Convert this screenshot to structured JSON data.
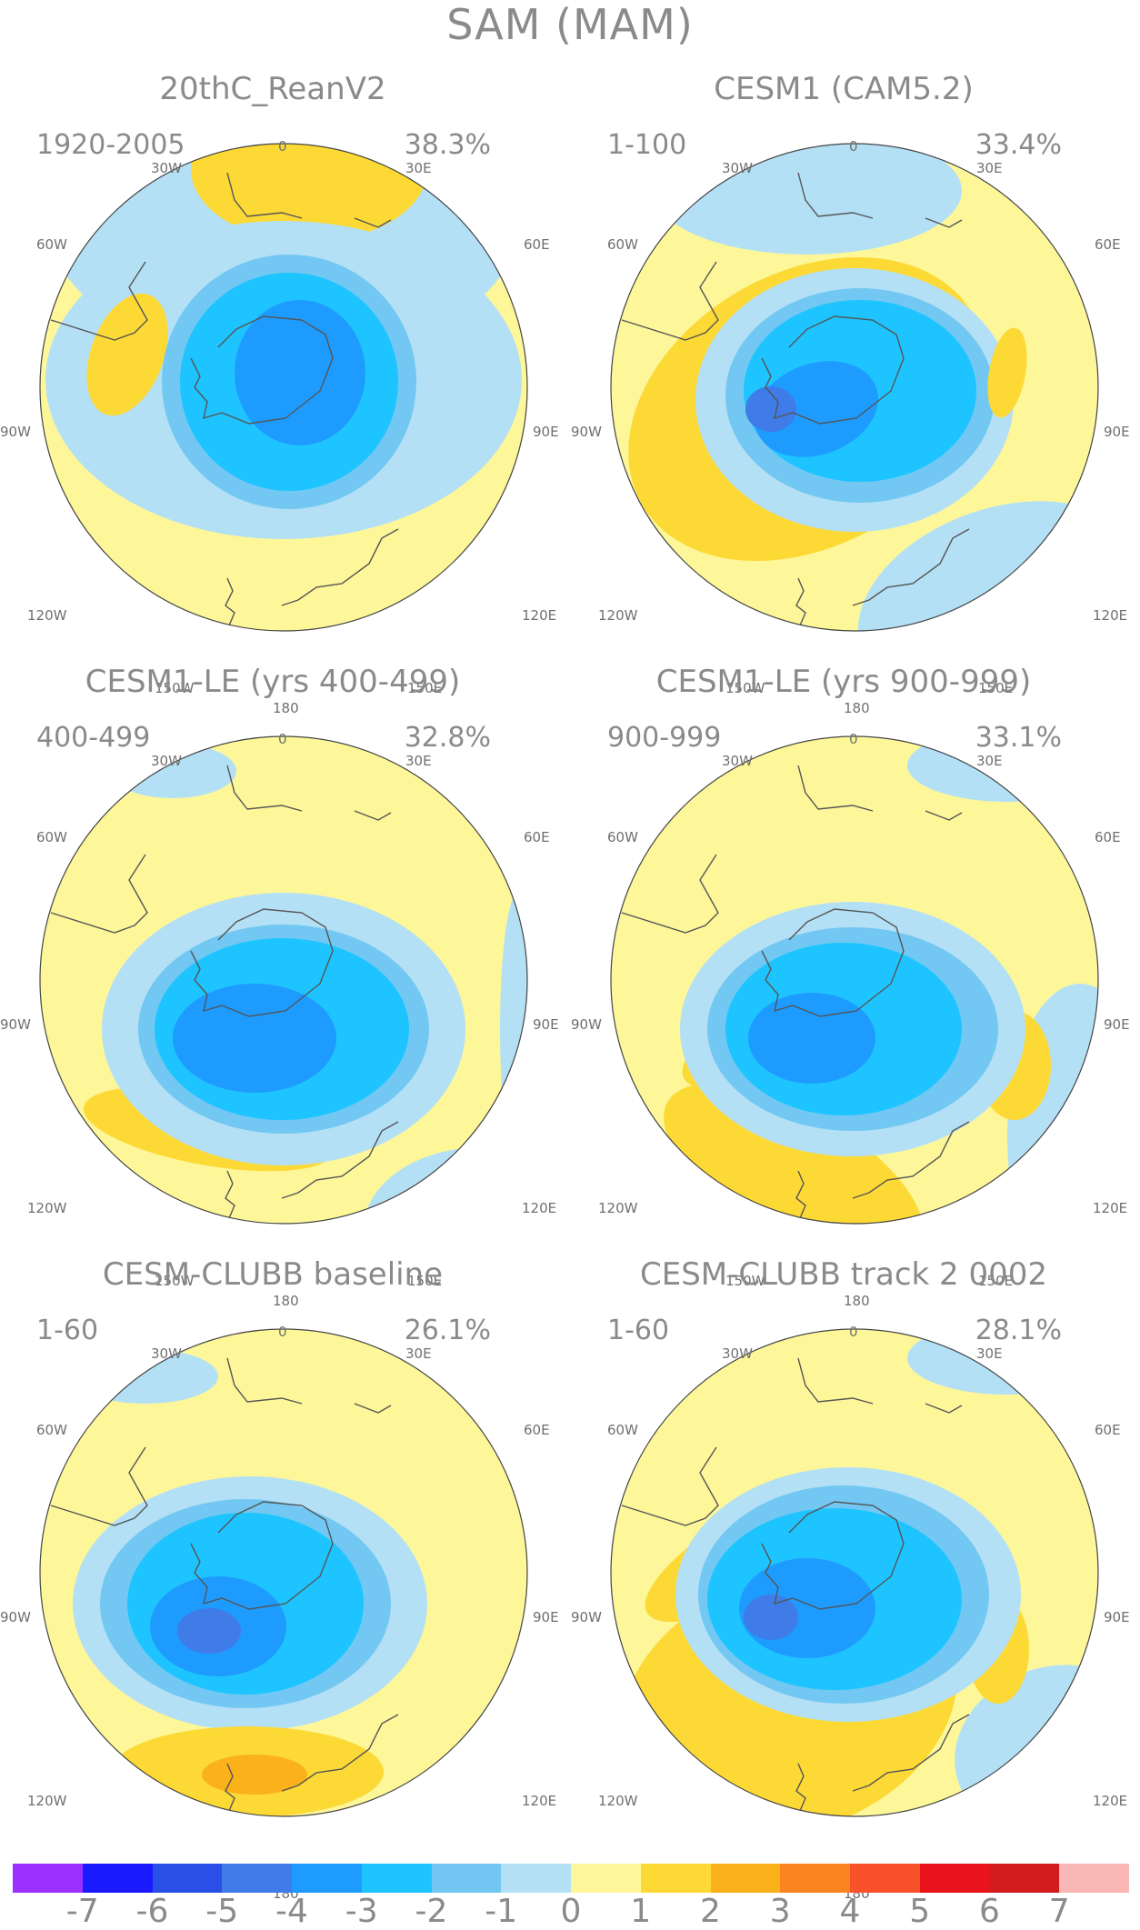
{
  "title": "SAM (MAM)",
  "longitude_labels": {
    "top": "0",
    "top_right": "30E",
    "right_upper": "60E",
    "right": "90E",
    "right_lower": "120E",
    "bottom_right": "150E",
    "bottom": "180",
    "bottom_left": "150W",
    "left_lower": "120W",
    "left": "90W",
    "left_upper": "60W",
    "top_left": "30W"
  },
  "panels": [
    {
      "title": "20thC_ReanV2",
      "period": "1920-2005",
      "variance": "38.3%"
    },
    {
      "title": "CESM1 (CAM5.2)",
      "period": "1-100",
      "variance": "33.4%"
    },
    {
      "title": "CESM1-LE (yrs 400-499)",
      "period": "400-499",
      "variance": "32.8%"
    },
    {
      "title": "CESM1-LE (yrs 900-999)",
      "period": "900-999",
      "variance": "33.1%"
    },
    {
      "title": "CESM-CLUBB baseline",
      "period": "1-60",
      "variance": "26.1%"
    },
    {
      "title": "CESM-CLUBB track 2 0002",
      "period": "1-60",
      "variance": "28.1%"
    }
  ],
  "colorbar": {
    "colors": [
      "#9b30ff",
      "#1a1aff",
      "#2a4fe8",
      "#3f7ce8",
      "#1e9bff",
      "#1ec4ff",
      "#72c8f2",
      "#b4e0f5",
      "#fdf79a",
      "#fcd935",
      "#fbb11a",
      "#fb8420",
      "#f9522a",
      "#e8131b",
      "#d11c1f",
      "#fbb6b6"
    ],
    "labels": [
      "-7",
      "-6",
      "-5",
      "-4",
      "-3",
      "-2",
      "-1",
      "0",
      "1",
      "2",
      "3",
      "4",
      "5",
      "6",
      "7"
    ]
  },
  "colors": {
    "background": "#fdf79a",
    "neg1": "#b4e0f5",
    "neg2": "#72c8f2",
    "neg3": "#1ec4ff",
    "neg4": "#1e9bff",
    "neg5": "#3f7ce8",
    "pos2": "#fcd935",
    "pos3": "#fbb11a",
    "coast": "#555555",
    "text": "#8a8a8a"
  }
}
